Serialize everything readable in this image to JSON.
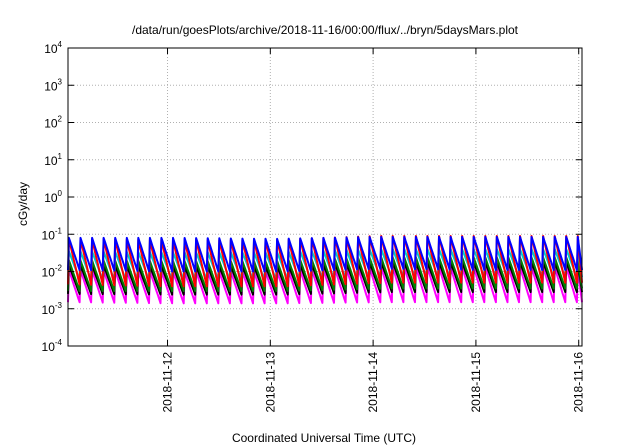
{
  "chart_data": {
    "type": "line",
    "title": "/data/run/goesPlots/archive/2018-11-16/00:00/flux/../bryn/5daysMars.plot",
    "xlabel": "Coordinated Universal Time (UTC)",
    "ylabel": "cGy/day",
    "x_range": [
      "2018-11-11T00:46",
      "2018-11-16T00:46"
    ],
    "x_ticks": [
      "2018-11-12",
      "2018-11-13",
      "2018-11-14",
      "2018-11-15",
      "2018-11-16"
    ],
    "y_scale": "log",
    "ylim": [
      0.0001,
      10000
    ],
    "y_ticks": [
      {
        "base": "10",
        "exp": "-4"
      },
      {
        "base": "10",
        "exp": "-3"
      },
      {
        "base": "10",
        "exp": "-2"
      },
      {
        "base": "10",
        "exp": "-1"
      },
      {
        "base": "10",
        "exp": "0"
      },
      {
        "base": "10",
        "exp": "1"
      },
      {
        "base": "10",
        "exp": "2"
      },
      {
        "base": "10",
        "exp": "3"
      },
      {
        "base": "10",
        "exp": "4"
      }
    ],
    "grid": true,
    "legend": "none",
    "sawtooth_period_hours": 2.7,
    "series": [
      {
        "color": "#0000ff",
        "peak_per_day": [
          0.08,
          0.08,
          0.075,
          0.085,
          0.085
        ],
        "trough_per_day": [
          0.011,
          0.01,
          0.01,
          0.012,
          0.011
        ]
      },
      {
        "color": "#ff0000",
        "peak_per_day": [
          0.075,
          0.07,
          0.07,
          0.09,
          0.09
        ],
        "trough_per_day": [
          0.0045,
          0.004,
          0.004,
          0.005,
          0.005
        ]
      },
      {
        "color": "#00cccc",
        "peak_per_day": [
          0.035,
          0.033,
          0.033,
          0.04,
          0.04
        ],
        "trough_per_day": [
          0.006,
          0.006,
          0.006,
          0.007,
          0.007
        ]
      },
      {
        "color": "#008000",
        "peak_per_day": [
          0.02,
          0.019,
          0.019,
          0.024,
          0.024
        ],
        "trough_per_day": [
          0.003,
          0.003,
          0.003,
          0.0035,
          0.0035
        ]
      },
      {
        "color": "#000000",
        "peak_per_day": [
          0.015,
          0.014,
          0.014,
          0.018,
          0.018
        ],
        "trough_per_day": [
          0.0025,
          0.0024,
          0.0024,
          0.0028,
          0.0028
        ]
      },
      {
        "color": "#ff00ff",
        "peak_per_day": [
          0.011,
          0.01,
          0.01,
          0.013,
          0.013
        ],
        "trough_per_day": [
          0.0015,
          0.0014,
          0.0014,
          0.0015,
          0.0015
        ]
      }
    ]
  }
}
